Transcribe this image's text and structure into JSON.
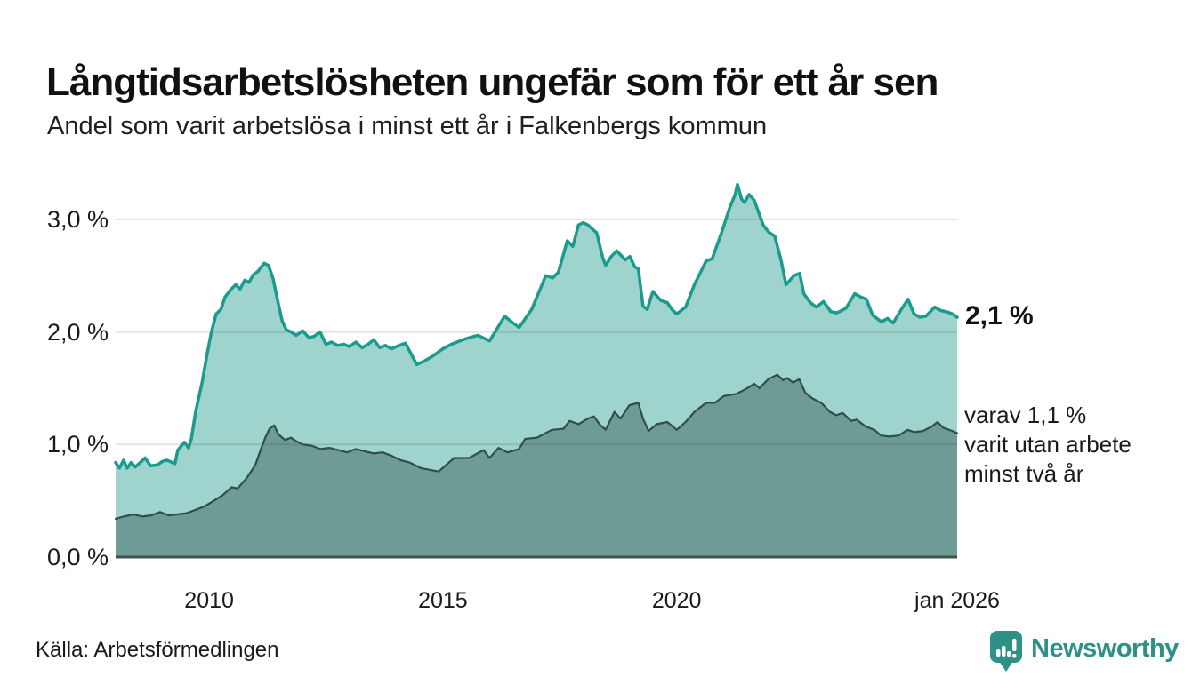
{
  "header": {
    "title": "Långtidsarbetslösheten ungefär som för ett år sen",
    "subtitle": "Andel som varit arbetslösa i minst ett år i Falkenbergs kommun"
  },
  "chart_data": {
    "type": "area",
    "title": "Långtidsarbetslösheten ungefär som för ett år sen",
    "subtitle": "Andel som varit arbetslösa i minst ett år i Falkenbergs kommun",
    "unit": "%",
    "x_domain": [
      2008,
      2026
    ],
    "ylim": [
      0,
      3.4
    ],
    "grid": "horizontal",
    "x_ticks": [
      {
        "label": "2010",
        "year": 2010
      },
      {
        "label": "2015",
        "year": 2015
      },
      {
        "label": "2020",
        "year": 2020
      },
      {
        "label": "jan 2026",
        "year": 2026
      }
    ],
    "y_ticks": [
      {
        "label": "0,0 %",
        "value": 0
      },
      {
        "label": "1,0 %",
        "value": 1
      },
      {
        "label": "2,0 %",
        "value": 2
      },
      {
        "label": "3,0 %",
        "value": 3
      }
    ],
    "series": [
      {
        "name": "Andel arbetslösa minst ett år",
        "line": "#1a9b8d",
        "fill": "#9ed4cd",
        "line_width": 3.5,
        "points": [
          [
            2008.0,
            0.84
          ],
          [
            2008.08,
            0.79
          ],
          [
            2008.17,
            0.86
          ],
          [
            2008.25,
            0.79
          ],
          [
            2008.33,
            0.84
          ],
          [
            2008.42,
            0.8
          ],
          [
            2008.5,
            0.83
          ],
          [
            2008.63,
            0.88
          ],
          [
            2008.75,
            0.81
          ],
          [
            2008.9,
            0.82
          ],
          [
            2009.0,
            0.85
          ],
          [
            2009.1,
            0.86
          ],
          [
            2009.27,
            0.83
          ],
          [
            2009.33,
            0.95
          ],
          [
            2009.47,
            1.02
          ],
          [
            2009.56,
            0.97
          ],
          [
            2009.62,
            1.05
          ],
          [
            2009.71,
            1.29
          ],
          [
            2009.85,
            1.55
          ],
          [
            2009.96,
            1.81
          ],
          [
            2010.05,
            2.0
          ],
          [
            2010.15,
            2.16
          ],
          [
            2010.25,
            2.2
          ],
          [
            2010.34,
            2.31
          ],
          [
            2010.47,
            2.38
          ],
          [
            2010.57,
            2.42
          ],
          [
            2010.66,
            2.38
          ],
          [
            2010.76,
            2.46
          ],
          [
            2010.85,
            2.44
          ],
          [
            2010.95,
            2.51
          ],
          [
            2011.05,
            2.54
          ],
          [
            2011.1,
            2.57
          ],
          [
            2011.18,
            2.61
          ],
          [
            2011.27,
            2.59
          ],
          [
            2011.37,
            2.47
          ],
          [
            2011.46,
            2.29
          ],
          [
            2011.56,
            2.1
          ],
          [
            2011.65,
            2.02
          ],
          [
            2011.75,
            2.0
          ],
          [
            2011.86,
            1.97
          ],
          [
            2012.0,
            2.01
          ],
          [
            2012.13,
            1.95
          ],
          [
            2012.24,
            1.96
          ],
          [
            2012.37,
            2.0
          ],
          [
            2012.5,
            1.89
          ],
          [
            2012.62,
            1.91
          ],
          [
            2012.75,
            1.88
          ],
          [
            2012.88,
            1.89
          ],
          [
            2013.0,
            1.87
          ],
          [
            2013.14,
            1.91
          ],
          [
            2013.27,
            1.86
          ],
          [
            2013.4,
            1.89
          ],
          [
            2013.52,
            1.93
          ],
          [
            2013.65,
            1.86
          ],
          [
            2013.77,
            1.88
          ],
          [
            2013.9,
            1.85
          ],
          [
            2014.06,
            1.88
          ],
          [
            2014.2,
            1.9
          ],
          [
            2014.44,
            1.71
          ],
          [
            2014.6,
            1.74
          ],
          [
            2014.8,
            1.79
          ],
          [
            2015.0,
            1.85
          ],
          [
            2015.18,
            1.89
          ],
          [
            2015.49,
            1.94
          ],
          [
            2015.75,
            1.97
          ],
          [
            2016.0,
            1.92
          ],
          [
            2016.32,
            2.14
          ],
          [
            2016.5,
            2.08
          ],
          [
            2016.63,
            2.04
          ],
          [
            2016.9,
            2.2
          ],
          [
            2017.2,
            2.5
          ],
          [
            2017.35,
            2.48
          ],
          [
            2017.47,
            2.53
          ],
          [
            2017.66,
            2.81
          ],
          [
            2017.78,
            2.76
          ],
          [
            2017.9,
            2.95
          ],
          [
            2018.0,
            2.97
          ],
          [
            2018.1,
            2.95
          ],
          [
            2018.29,
            2.88
          ],
          [
            2018.42,
            2.66
          ],
          [
            2018.48,
            2.59
          ],
          [
            2018.6,
            2.67
          ],
          [
            2018.72,
            2.72
          ],
          [
            2018.9,
            2.64
          ],
          [
            2019.0,
            2.67
          ],
          [
            2019.1,
            2.58
          ],
          [
            2019.18,
            2.56
          ],
          [
            2019.28,
            2.23
          ],
          [
            2019.37,
            2.2
          ],
          [
            2019.49,
            2.36
          ],
          [
            2019.66,
            2.28
          ],
          [
            2019.8,
            2.26
          ],
          [
            2019.9,
            2.2
          ],
          [
            2020.0,
            2.16
          ],
          [
            2020.19,
            2.22
          ],
          [
            2020.38,
            2.42
          ],
          [
            2020.63,
            2.63
          ],
          [
            2020.76,
            2.65
          ],
          [
            2020.95,
            2.87
          ],
          [
            2021.14,
            3.11
          ],
          [
            2021.25,
            3.22
          ],
          [
            2021.3,
            3.31
          ],
          [
            2021.39,
            3.18
          ],
          [
            2021.45,
            3.15
          ],
          [
            2021.55,
            3.22
          ],
          [
            2021.66,
            3.17
          ],
          [
            2021.85,
            2.95
          ],
          [
            2021.96,
            2.89
          ],
          [
            2022.1,
            2.85
          ],
          [
            2022.23,
            2.64
          ],
          [
            2022.34,
            2.42
          ],
          [
            2022.51,
            2.5
          ],
          [
            2022.63,
            2.52
          ],
          [
            2022.72,
            2.34
          ],
          [
            2022.86,
            2.26
          ],
          [
            2022.99,
            2.22
          ],
          [
            2023.14,
            2.27
          ],
          [
            2023.3,
            2.18
          ],
          [
            2023.43,
            2.17
          ],
          [
            2023.62,
            2.21
          ],
          [
            2023.81,
            2.34
          ],
          [
            2023.94,
            2.31
          ],
          [
            2024.06,
            2.29
          ],
          [
            2024.19,
            2.15
          ],
          [
            2024.38,
            2.09
          ],
          [
            2024.51,
            2.12
          ],
          [
            2024.63,
            2.08
          ],
          [
            2024.82,
            2.21
          ],
          [
            2024.95,
            2.29
          ],
          [
            2025.08,
            2.16
          ],
          [
            2025.2,
            2.13
          ],
          [
            2025.33,
            2.14
          ],
          [
            2025.52,
            2.22
          ],
          [
            2025.65,
            2.19
          ],
          [
            2025.77,
            2.18
          ],
          [
            2025.9,
            2.16
          ],
          [
            2026.0,
            2.13
          ]
        ]
      },
      {
        "name": "varav utan arbete minst två år",
        "line": "#2f4f49",
        "fill": "#6f9b96",
        "line_width": 2.2,
        "points": [
          [
            2008.0,
            0.34
          ],
          [
            2008.17,
            0.36
          ],
          [
            2008.38,
            0.38
          ],
          [
            2008.57,
            0.36
          ],
          [
            2008.76,
            0.37
          ],
          [
            2008.95,
            0.4
          ],
          [
            2009.14,
            0.37
          ],
          [
            2009.33,
            0.38
          ],
          [
            2009.52,
            0.39
          ],
          [
            2009.71,
            0.42
          ],
          [
            2009.9,
            0.45
          ],
          [
            2010.1,
            0.5
          ],
          [
            2010.29,
            0.55
          ],
          [
            2010.48,
            0.62
          ],
          [
            2010.61,
            0.61
          ],
          [
            2010.8,
            0.7
          ],
          [
            2010.99,
            0.82
          ],
          [
            2011.1,
            0.95
          ],
          [
            2011.2,
            1.06
          ],
          [
            2011.29,
            1.14
          ],
          [
            2011.39,
            1.17
          ],
          [
            2011.48,
            1.09
          ],
          [
            2011.62,
            1.04
          ],
          [
            2011.75,
            1.06
          ],
          [
            2011.86,
            1.03
          ],
          [
            2012.0,
            1.0
          ],
          [
            2012.19,
            0.99
          ],
          [
            2012.38,
            0.96
          ],
          [
            2012.57,
            0.97
          ],
          [
            2012.76,
            0.95
          ],
          [
            2012.95,
            0.93
          ],
          [
            2013.14,
            0.96
          ],
          [
            2013.33,
            0.94
          ],
          [
            2013.52,
            0.92
          ],
          [
            2013.71,
            0.93
          ],
          [
            2013.9,
            0.9
          ],
          [
            2014.1,
            0.86
          ],
          [
            2014.29,
            0.84
          ],
          [
            2014.53,
            0.79
          ],
          [
            2014.91,
            0.76
          ],
          [
            2015.24,
            0.88
          ],
          [
            2015.56,
            0.88
          ],
          [
            2015.87,
            0.95
          ],
          [
            2016.0,
            0.88
          ],
          [
            2016.19,
            0.97
          ],
          [
            2016.38,
            0.93
          ],
          [
            2016.63,
            0.96
          ],
          [
            2016.76,
            1.05
          ],
          [
            2017.01,
            1.06
          ],
          [
            2017.33,
            1.13
          ],
          [
            2017.58,
            1.14
          ],
          [
            2017.71,
            1.21
          ],
          [
            2017.9,
            1.18
          ],
          [
            2018.1,
            1.23
          ],
          [
            2018.23,
            1.25
          ],
          [
            2018.35,
            1.18
          ],
          [
            2018.48,
            1.13
          ],
          [
            2018.67,
            1.29
          ],
          [
            2018.8,
            1.23
          ],
          [
            2018.99,
            1.35
          ],
          [
            2019.18,
            1.37
          ],
          [
            2019.28,
            1.23
          ],
          [
            2019.4,
            1.12
          ],
          [
            2019.57,
            1.18
          ],
          [
            2019.8,
            1.2
          ],
          [
            2020.0,
            1.13
          ],
          [
            2020.19,
            1.2
          ],
          [
            2020.38,
            1.29
          ],
          [
            2020.63,
            1.37
          ],
          [
            2020.82,
            1.37
          ],
          [
            2021.01,
            1.43
          ],
          [
            2021.28,
            1.45
          ],
          [
            2021.47,
            1.49
          ],
          [
            2021.66,
            1.54
          ],
          [
            2021.77,
            1.5
          ],
          [
            2021.96,
            1.58
          ],
          [
            2022.15,
            1.62
          ],
          [
            2022.28,
            1.57
          ],
          [
            2022.36,
            1.59
          ],
          [
            2022.49,
            1.55
          ],
          [
            2022.62,
            1.58
          ],
          [
            2022.75,
            1.46
          ],
          [
            2022.9,
            1.41
          ],
          [
            2023.09,
            1.37
          ],
          [
            2023.28,
            1.29
          ],
          [
            2023.41,
            1.26
          ],
          [
            2023.55,
            1.28
          ],
          [
            2023.73,
            1.21
          ],
          [
            2023.85,
            1.22
          ],
          [
            2024.04,
            1.16
          ],
          [
            2024.23,
            1.13
          ],
          [
            2024.37,
            1.08
          ],
          [
            2024.56,
            1.07
          ],
          [
            2024.75,
            1.08
          ],
          [
            2024.94,
            1.13
          ],
          [
            2025.08,
            1.11
          ],
          [
            2025.27,
            1.12
          ],
          [
            2025.46,
            1.16
          ],
          [
            2025.58,
            1.2
          ],
          [
            2025.7,
            1.15
          ],
          [
            2025.9,
            1.12
          ],
          [
            2026.0,
            1.1
          ]
        ]
      }
    ],
    "annotations": {
      "latest_total": "2,1 %",
      "secondary_line1": "varav 1,1 %",
      "secondary_line2": "varit utan arbete",
      "secondary_line3": "minst två år"
    },
    "colors": {
      "gridline": "rgba(0,0,0,0.11)",
      "baseline": "#3e514d",
      "accent": "#1a9b8d",
      "brand": "#2f9088"
    }
  },
  "footer": {
    "source": "Källa: Arbetsförmedlingen",
    "brand": "Newsworthy"
  }
}
